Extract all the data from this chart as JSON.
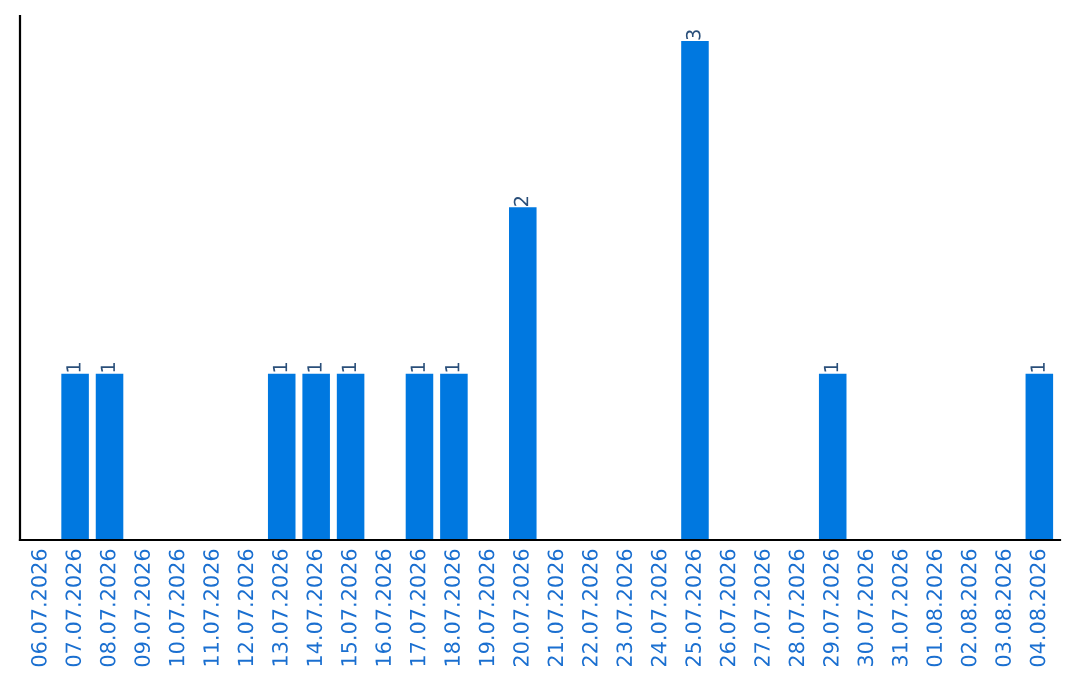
{
  "chart_data": {
    "type": "bar",
    "categories": [
      "06.07.2026",
      "07.07.2026",
      "08.07.2026",
      "09.07.2026",
      "10.07.2026",
      "11.07.2026",
      "12.07.2026",
      "13.07.2026",
      "14.07.2026",
      "15.07.2026",
      "16.07.2026",
      "17.07.2026",
      "18.07.2026",
      "19.07.2026",
      "20.07.2026",
      "21.07.2026",
      "22.07.2026",
      "23.07.2026",
      "24.07.2026",
      "25.07.2026",
      "26.07.2026",
      "27.07.2026",
      "28.07.2026",
      "29.07.2026",
      "30.07.2026",
      "31.07.2026",
      "01.08.2026",
      "02.08.2026",
      "03.08.2026",
      "04.08.2026"
    ],
    "values": [
      0,
      1,
      1,
      0,
      0,
      0,
      0,
      1,
      1,
      1,
      0,
      1,
      1,
      0,
      2,
      0,
      0,
      0,
      0,
      3,
      0,
      0,
      0,
      1,
      0,
      0,
      0,
      0,
      0,
      1
    ],
    "value_labels": [
      null,
      "1",
      "1",
      null,
      null,
      null,
      null,
      "1",
      "1",
      "1",
      null,
      "1",
      "1",
      null,
      "2",
      null,
      null,
      null,
      null,
      "3",
      null,
      null,
      null,
      "1",
      null,
      null,
      null,
      null,
      null,
      "1"
    ],
    "color": "#0078e0",
    "ylim": [
      0,
      3.0
    ],
    "tick_labels": "x",
    "grid": false,
    "legend": false
  }
}
